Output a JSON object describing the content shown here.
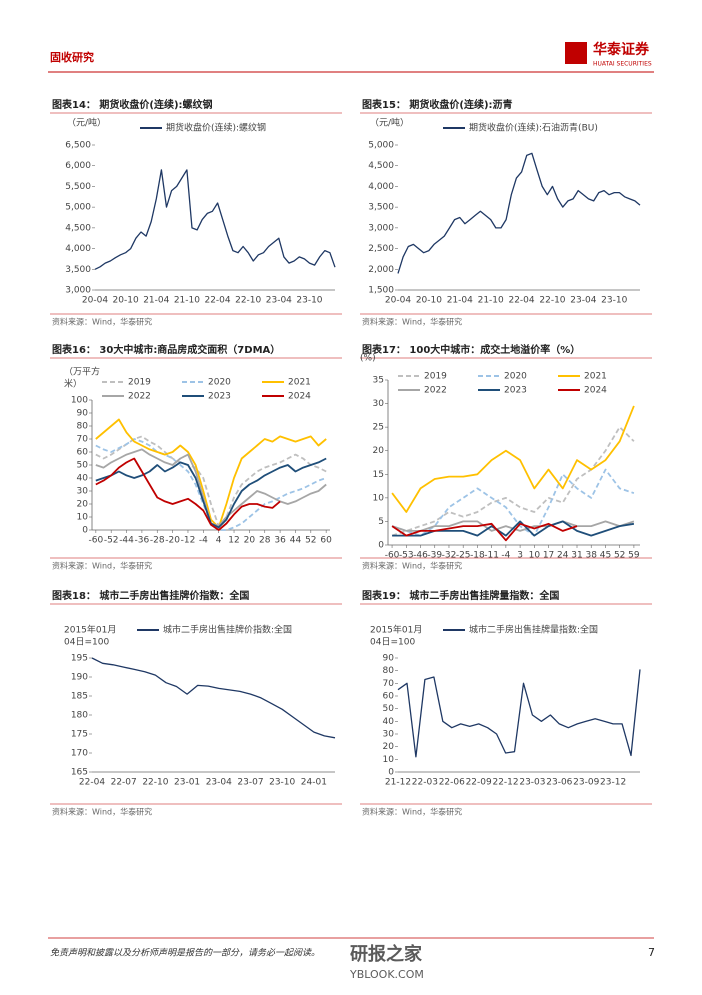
{
  "header": {
    "section": "固收研究",
    "logo": "华泰证券",
    "logo_en": "HUATAI SECURITIES"
  },
  "footer": {
    "disclaimer": "免责声明和披露以及分析师声明是报告的一部分，请务必一起阅读。",
    "page": "7",
    "watermark": "研报之家",
    "watermark_url": "YBLOOK.COM"
  },
  "chart_data": [
    {
      "type": "line",
      "title": "图表14： 期货收盘价(连续):螺纹钢",
      "unit": [
        "（元/吨）"
      ],
      "source": "资料来源：Wind，华泰研究",
      "categories": [
        "20-04",
        null,
        null,
        null,
        null,
        null,
        "20-10",
        null,
        null,
        null,
        null,
        null,
        "21-04",
        null,
        null,
        null,
        null,
        null,
        "21-10",
        null,
        null,
        null,
        null,
        null,
        "22-04",
        null,
        null,
        null,
        null,
        null,
        "22-10",
        null,
        null,
        null,
        null,
        null,
        "23-04",
        null,
        null,
        null,
        null,
        null,
        "23-10",
        null,
        null,
        null,
        null,
        null
      ],
      "series": [
        {
          "name": "期货收盘价(连续):螺纹钢",
          "color": "#1f3864",
          "values": [
            3500,
            3560,
            3650,
            3700,
            3780,
            3850,
            3900,
            4000,
            4250,
            4400,
            4300,
            4650,
            5200,
            5900,
            5000,
            5400,
            5500,
            5700,
            5900,
            4500,
            4450,
            4700,
            4850,
            4900,
            5100,
            4700,
            4300,
            3950,
            3900,
            4050,
            3900,
            3700,
            3850,
            3900,
            4050,
            4150,
            4250,
            3800,
            3650,
            3700,
            3800,
            3750,
            3650,
            3600,
            3800,
            3950,
            3900,
            3550
          ]
        }
      ],
      "ylim": [
        3000,
        6500
      ],
      "yticks": [
        {
          "value": 3000,
          "label": "3,000"
        },
        {
          "value": 3500,
          "label": "3,500"
        },
        {
          "value": 4000,
          "label": "4,000"
        },
        {
          "value": 4500,
          "label": "4,500"
        },
        {
          "value": 5000,
          "label": "5,000"
        },
        {
          "value": 5500,
          "label": "5,500"
        },
        {
          "value": 6000,
          "label": "6,000"
        },
        {
          "value": 6500,
          "label": "6,500"
        }
      ]
    },
    {
      "type": "line",
      "title": "图表15： 期货收盘价(连续):沥青",
      "unit": [
        "（元/吨）"
      ],
      "source": "资料来源：Wind，华泰研究",
      "categories": [
        "20-04",
        null,
        null,
        null,
        null,
        null,
        "20-10",
        null,
        null,
        null,
        null,
        null,
        "21-04",
        null,
        null,
        null,
        null,
        null,
        "21-10",
        null,
        null,
        null,
        null,
        null,
        "22-04",
        null,
        null,
        null,
        null,
        null,
        "22-10",
        null,
        null,
        null,
        null,
        null,
        "23-04",
        null,
        null,
        null,
        null,
        null,
        "23-10",
        null,
        null,
        null,
        null,
        null
      ],
      "series": [
        {
          "name": "期货收盘价(连续):石油沥青(BU)",
          "color": "#1f3864",
          "values": [
            1900,
            2300,
            2550,
            2600,
            2500,
            2400,
            2450,
            2600,
            2700,
            2800,
            3000,
            3200,
            3250,
            3100,
            3200,
            3300,
            3400,
            3300,
            3200,
            3000,
            3000,
            3200,
            3800,
            4200,
            4350,
            4750,
            4800,
            4400,
            4000,
            3800,
            4000,
            3700,
            3500,
            3650,
            3700,
            3900,
            3800,
            3700,
            3650,
            3850,
            3900,
            3800,
            3850,
            3850,
            3750,
            3700,
            3650,
            3550
          ]
        }
      ],
      "ylim": [
        1500,
        5000
      ],
      "yticks": [
        {
          "value": 1500,
          "label": "1,500"
        },
        {
          "value": 2000,
          "label": "2,000"
        },
        {
          "value": 2500,
          "label": "2,500"
        },
        {
          "value": 3000,
          "label": "3,000"
        },
        {
          "value": 3500,
          "label": "3,500"
        },
        {
          "value": 4000,
          "label": "4,000"
        },
        {
          "value": 4500,
          "label": "4,500"
        },
        {
          "value": 5000,
          "label": "5,000"
        }
      ]
    },
    {
      "type": "line",
      "title": "图表16： 30大中城市:商品房成交面积（7DMA）",
      "unit": [
        "（万平方",
        "米）"
      ],
      "source": "资料来源：Wind，华泰研究",
      "x": [
        -60,
        -56,
        -52,
        -48,
        -44,
        -40,
        -36,
        -32,
        -28,
        -24,
        -20,
        -16,
        -12,
        -8,
        -4,
        0,
        4,
        8,
        12,
        16,
        20,
        24,
        28,
        32,
        36,
        40,
        44,
        48,
        52,
        56,
        60
      ],
      "xlim": [
        -62,
        62
      ],
      "xticks": [
        -60,
        -52,
        -44,
        -36,
        -28,
        -20,
        -12,
        -4,
        4,
        12,
        20,
        28,
        36,
        44,
        52,
        60
      ],
      "series": [
        {
          "name": "2019",
          "color": "#bfbfbf",
          "dash": true,
          "values": [
            58,
            55,
            58,
            62,
            66,
            70,
            72,
            68,
            65,
            60,
            55,
            52,
            50,
            48,
            40,
            20,
            3,
            10,
            25,
            35,
            40,
            45,
            48,
            50,
            52,
            55,
            58,
            55,
            50,
            48,
            45
          ]
        },
        {
          "name": "2020",
          "color": "#9dc3e6",
          "dash": true,
          "values": [
            65,
            62,
            60,
            63,
            66,
            70,
            68,
            65,
            60,
            58,
            55,
            50,
            45,
            35,
            20,
            5,
            0,
            0,
            2,
            5,
            10,
            15,
            20,
            22,
            25,
            28,
            30,
            32,
            35,
            38,
            40
          ]
        },
        {
          "name": "2021",
          "color": "#ffc000",
          "values": [
            70,
            75,
            80,
            85,
            75,
            68,
            65,
            62,
            60,
            58,
            60,
            65,
            60,
            50,
            30,
            8,
            2,
            20,
            40,
            55,
            60,
            65,
            70,
            68,
            72,
            70,
            68,
            70,
            72,
            65,
            70
          ]
        },
        {
          "name": "2022",
          "color": "#a6a6a6",
          "values": [
            50,
            48,
            52,
            55,
            58,
            60,
            62,
            58,
            55,
            52,
            50,
            55,
            58,
            45,
            25,
            5,
            3,
            10,
            15,
            20,
            25,
            30,
            28,
            25,
            22,
            20,
            22,
            25,
            28,
            30,
            35
          ]
        },
        {
          "name": "2023",
          "color": "#1f4e79",
          "values": [
            38,
            40,
            42,
            45,
            42,
            40,
            42,
            45,
            50,
            45,
            48,
            52,
            50,
            40,
            22,
            5,
            2,
            8,
            20,
            30,
            35,
            38,
            42,
            45,
            48,
            50,
            45,
            48,
            50,
            52,
            55
          ]
        },
        {
          "name": "2024",
          "color": "#c00000",
          "values": [
            35,
            38,
            42,
            48,
            52,
            55,
            45,
            35,
            25,
            22,
            20,
            22,
            24,
            20,
            15,
            4,
            0,
            5,
            12,
            18,
            20,
            20,
            18,
            17,
            22,
            null,
            null,
            null,
            null,
            null,
            null
          ]
        }
      ],
      "ylim": [
        0,
        100
      ],
      "yticks": [
        0,
        10,
        20,
        30,
        40,
        50,
        60,
        70,
        80,
        90,
        100
      ]
    },
    {
      "type": "line",
      "title": "图表17： 100大中城市：成交土地溢价率（%）",
      "unit": [
        "(%)"
      ],
      "source": "资料来源：Wind，华泰研究",
      "x": [
        -60,
        -53,
        -46,
        -39,
        -32,
        -25,
        -18,
        -11,
        -4,
        3,
        10,
        17,
        24,
        31,
        38,
        45,
        52,
        59
      ],
      "xlim": [
        -62,
        62
      ],
      "xticks": [
        -60,
        -53,
        -46,
        -39,
        -32,
        -25,
        -18,
        -11,
        -4,
        3,
        10,
        17,
        24,
        31,
        38,
        45,
        52,
        59
      ],
      "series": [
        {
          "name": "2019",
          "color": "#bfbfbf",
          "dash": true,
          "values": [
            2,
            3,
            4,
            5,
            7,
            6,
            7,
            9,
            10,
            8,
            7,
            10,
            9,
            14,
            16,
            20,
            25,
            22
          ]
        },
        {
          "name": "2020",
          "color": "#9dc3e6",
          "dash": true,
          "values": [
            4,
            3,
            2,
            4,
            8,
            10,
            12,
            10,
            8,
            4,
            2,
            8,
            15,
            12,
            10,
            16,
            12,
            11
          ]
        },
        {
          "name": "2021",
          "color": "#ffc000",
          "values": [
            11,
            7,
            12,
            14,
            14.5,
            14.5,
            15,
            18,
            20,
            18,
            12,
            16,
            12,
            18,
            16,
            18,
            22,
            29.5
          ]
        },
        {
          "name": "2022",
          "color": "#a6a6a6",
          "values": [
            4,
            3,
            3,
            4,
            4,
            5,
            5,
            3,
            4,
            3,
            4,
            4,
            5,
            4,
            4,
            5,
            4,
            5
          ]
        },
        {
          "name": "2023",
          "color": "#1f4e79",
          "values": [
            2,
            2,
            2,
            3,
            3,
            3,
            2,
            4,
            2,
            5,
            2,
            4,
            5,
            3,
            2,
            3,
            4,
            4.5
          ]
        },
        {
          "name": "2024",
          "color": "#c00000",
          "values": [
            4,
            2,
            3,
            3,
            3.5,
            4,
            4,
            4.5,
            1,
            4.5,
            3.5,
            4.5,
            3,
            4,
            null,
            null,
            null,
            null
          ]
        }
      ],
      "ylim": [
        0,
        35
      ],
      "yticks": [
        0,
        5,
        10,
        15,
        20,
        25,
        30,
        35
      ]
    },
    {
      "type": "line",
      "title": "图表18： 城市二手房出售挂牌价指数：全国",
      "unit": [
        "2015年01月",
        "04日=100"
      ],
      "source": "资料来源：Wind，华泰研究",
      "categories": [
        "22-04",
        null,
        null,
        "22-07",
        null,
        null,
        "22-10",
        null,
        null,
        "23-01",
        null,
        null,
        "23-04",
        null,
        null,
        "23-07",
        null,
        null,
        "23-10",
        null,
        null,
        "24-01",
        null,
        null
      ],
      "series": [
        {
          "name": "城市二手房出售挂牌价指数:全国",
          "color": "#1f3864",
          "values": [
            195,
            193.6,
            193.2,
            192.6,
            192,
            191.4,
            190.5,
            188.5,
            187.5,
            185.5,
            187.8,
            187.6,
            187,
            186.6,
            186.2,
            185.5,
            184.5,
            183,
            181.5,
            179.5,
            177.5,
            175.5,
            174.5,
            174
          ]
        }
      ],
      "ylim": [
        165,
        195
      ],
      "yticks": [
        165,
        170,
        175,
        180,
        185,
        190,
        195
      ]
    },
    {
      "type": "line",
      "title": "图表19： 城市二手房出售挂牌量指数：全国",
      "unit": [
        "2015年01月",
        "04日=100"
      ],
      "source": "资料来源：Wind，华泰研究",
      "categories": [
        "21-12",
        null,
        null,
        "22-03",
        null,
        null,
        "22-06",
        null,
        null,
        "22-09",
        null,
        null,
        "22-12",
        null,
        null,
        "23-03",
        null,
        null,
        "23-06",
        null,
        null,
        "23-09",
        null,
        null,
        "23-12",
        null,
        null,
        null
      ],
      "series": [
        {
          "name": "城市二手房出售挂牌量指数:全国",
          "color": "#1f3864",
          "values": [
            65,
            70,
            12,
            73,
            75,
            40,
            35,
            38,
            36,
            38,
            35,
            30,
            15,
            16,
            70,
            45,
            40,
            45,
            38,
            35,
            38,
            40,
            42,
            40,
            38,
            38,
            13,
            81
          ]
        }
      ],
      "ylim": [
        0,
        90
      ],
      "yticks": [
        0,
        10,
        20,
        30,
        40,
        50,
        60,
        70,
        80,
        90
      ]
    }
  ]
}
